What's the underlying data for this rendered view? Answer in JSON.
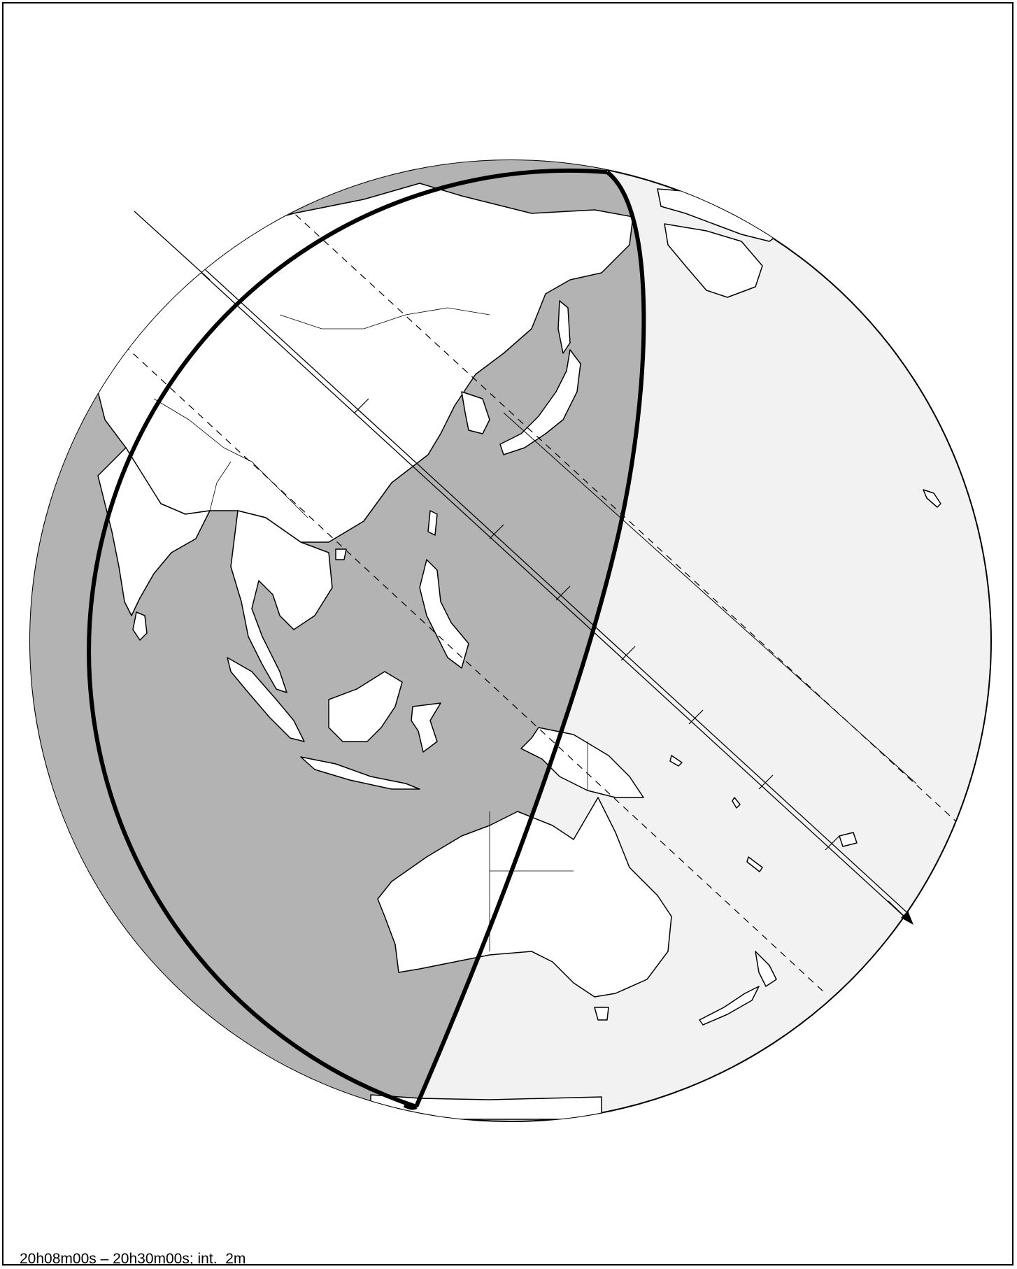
{
  "caption": "20h08m00s – 20h30m00s; int.  2m",
  "colors": {
    "background": "#ffffff",
    "night_shade": "#b3b3b3",
    "sunlit_ocean": "#f2f2f2",
    "land": "#ffffff",
    "lines": "#000000"
  },
  "icons": {
    "path_arrow": "arrowhead-icon"
  }
}
